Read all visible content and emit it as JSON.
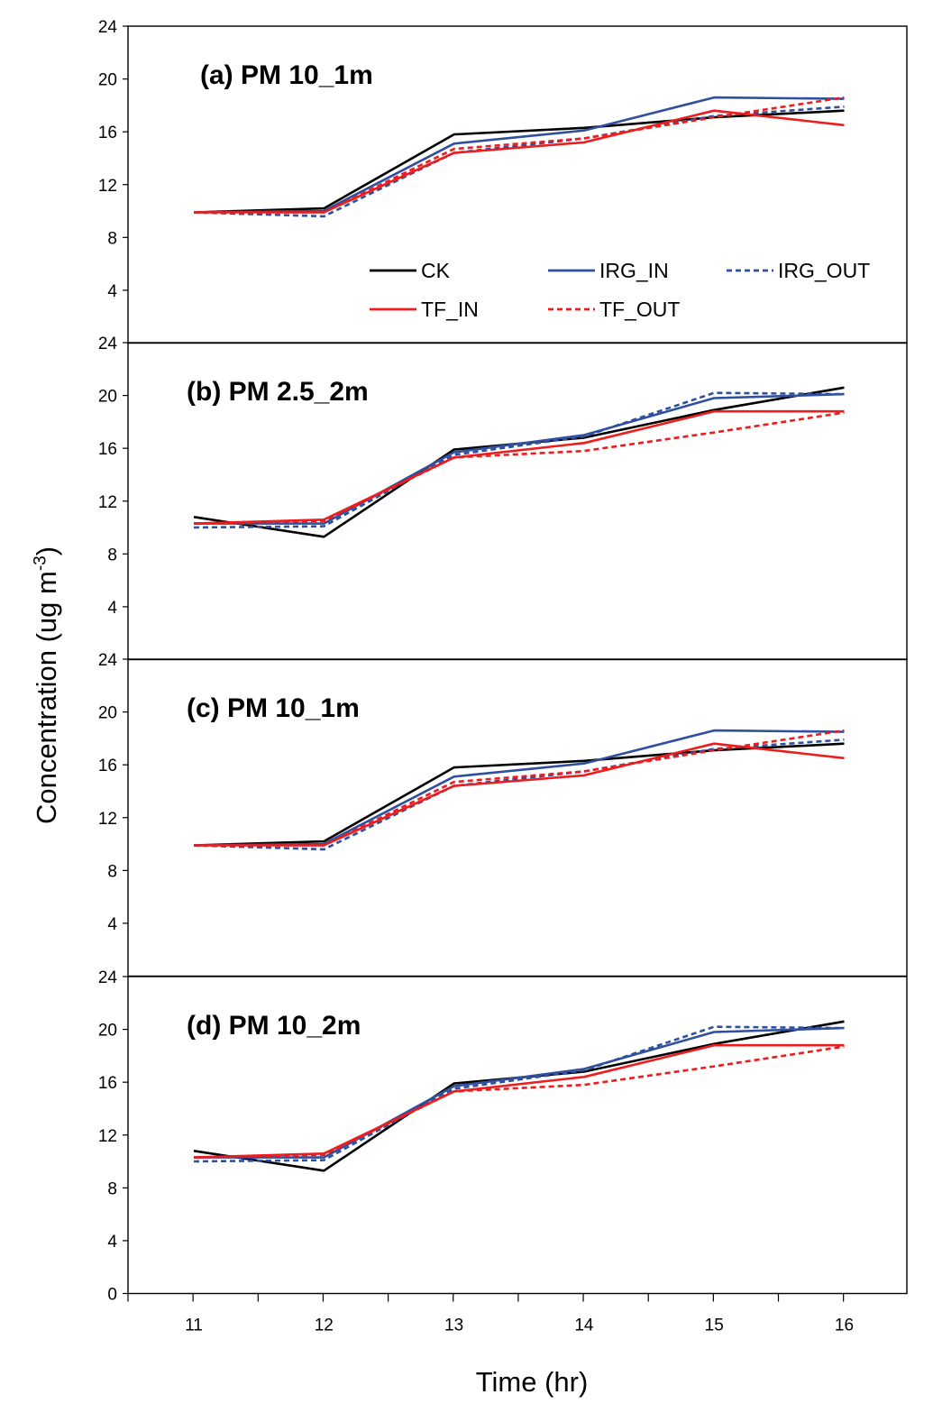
{
  "chart_data": {
    "type": "line",
    "xlabel": "Time (hr)",
    "ylabel_base": "Concentration (ug m",
    "ylabel_sup": "-3",
    "ylabel_close": ")",
    "x": [
      11,
      12,
      13,
      14,
      15,
      16
    ],
    "x_ticks": [
      "11",
      "12",
      "13",
      "14",
      "15",
      "16"
    ],
    "ylim": [
      0,
      24
    ],
    "y_ticks": [
      "0",
      "4",
      "8",
      "12",
      "16",
      "20",
      "24"
    ],
    "legend": [
      {
        "name": "CK",
        "color": "#000000",
        "dashed": false
      },
      {
        "name": "IRG_IN",
        "color": "#2f4f9f",
        "dashed": false
      },
      {
        "name": "IRG_OUT",
        "color": "#2f4f9f",
        "dashed": true
      },
      {
        "name": "TF_IN",
        "color": "#ee1c1c",
        "dashed": false
      },
      {
        "name": "TF_OUT",
        "color": "#ee1c1c",
        "dashed": true
      }
    ],
    "panels": [
      {
        "title": "(a) PM 10_1m",
        "series": [
          {
            "name": "CK",
            "values": [
              9.9,
              10.2,
              15.8,
              16.3,
              17.1,
              17.6
            ]
          },
          {
            "name": "IRG_IN",
            "values": [
              9.9,
              10.0,
              15.1,
              16.1,
              18.6,
              18.5
            ]
          },
          {
            "name": "IRG_OUT",
            "values": [
              9.9,
              9.6,
              14.4,
              15.5,
              17.2,
              17.9
            ]
          },
          {
            "name": "TF_IN",
            "values": [
              9.9,
              9.9,
              14.4,
              15.2,
              17.6,
              16.5
            ]
          },
          {
            "name": "TF_OUT",
            "values": [
              9.9,
              9.9,
              14.7,
              15.5,
              17.1,
              18.6
            ]
          }
        ]
      },
      {
        "title": "(b) PM 2.5_2m",
        "series": [
          {
            "name": "CK",
            "values": [
              10.8,
              9.3,
              15.9,
              16.8,
              18.9,
              20.6
            ]
          },
          {
            "name": "IRG_IN",
            "values": [
              10.3,
              10.3,
              15.7,
              17.0,
              19.8,
              20.1
            ]
          },
          {
            "name": "IRG_OUT",
            "values": [
              10.0,
              10.1,
              15.5,
              16.9,
              20.2,
              20.1
            ]
          },
          {
            "name": "TF_IN",
            "values": [
              10.3,
              10.6,
              15.3,
              16.4,
              18.8,
              18.8
            ]
          },
          {
            "name": "TF_OUT",
            "values": [
              10.3,
              10.5,
              15.3,
              15.8,
              17.2,
              18.7
            ]
          }
        ]
      },
      {
        "title": "(c) PM 10_1m",
        "series": [
          {
            "name": "CK",
            "values": [
              9.9,
              10.2,
              15.8,
              16.3,
              17.1,
              17.6
            ]
          },
          {
            "name": "IRG_IN",
            "values": [
              9.9,
              10.0,
              15.1,
              16.1,
              18.6,
              18.5
            ]
          },
          {
            "name": "IRG_OUT",
            "values": [
              9.9,
              9.6,
              14.4,
              15.5,
              17.2,
              17.9
            ]
          },
          {
            "name": "TF_IN",
            "values": [
              9.9,
              9.9,
              14.4,
              15.2,
              17.6,
              16.5
            ]
          },
          {
            "name": "TF_OUT",
            "values": [
              9.9,
              9.9,
              14.7,
              15.5,
              17.1,
              18.6
            ]
          }
        ]
      },
      {
        "title": "(d) PM 10_2m",
        "series": [
          {
            "name": "CK",
            "values": [
              10.8,
              9.3,
              15.9,
              16.8,
              18.9,
              20.6
            ]
          },
          {
            "name": "IRG_IN",
            "values": [
              10.3,
              10.3,
              15.7,
              17.0,
              19.8,
              20.1
            ]
          },
          {
            "name": "IRG_OUT",
            "values": [
              10.0,
              10.1,
              15.5,
              16.9,
              20.2,
              20.1
            ]
          },
          {
            "name": "TF_IN",
            "values": [
              10.3,
              10.6,
              15.3,
              16.4,
              18.8,
              18.8
            ]
          },
          {
            "name": "TF_OUT",
            "values": [
              10.3,
              10.5,
              15.3,
              15.8,
              17.2,
              18.7
            ]
          }
        ]
      }
    ]
  }
}
